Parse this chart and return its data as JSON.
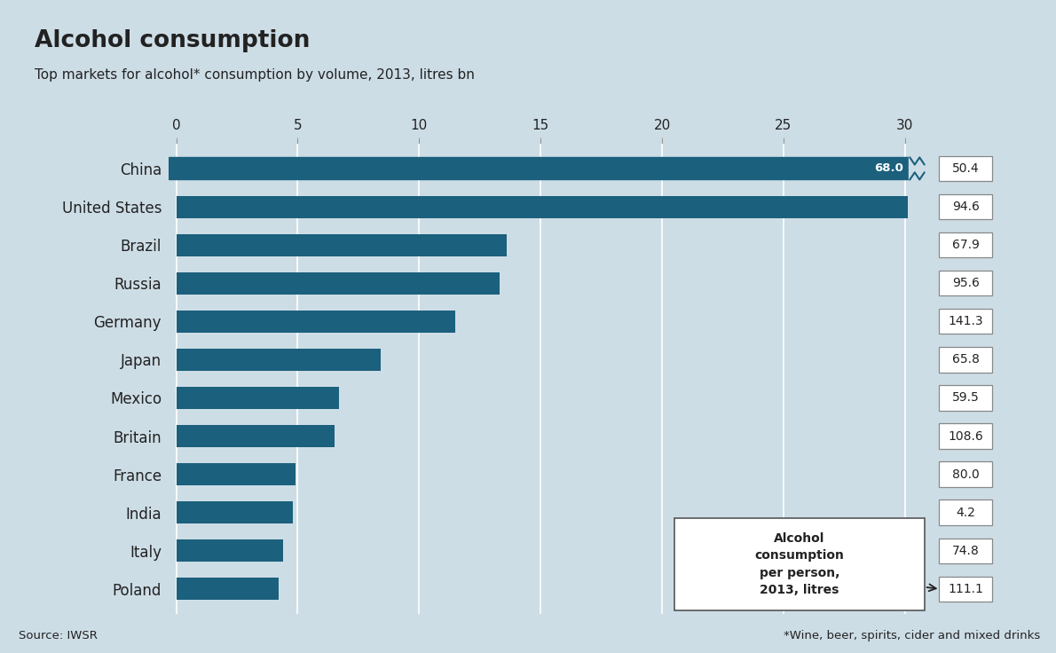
{
  "title": "Alcohol consumption",
  "subtitle": "Top markets for alcohol* consumption by volume, 2013, litres bn",
  "footnote": "*Wine, beer, spirits, cider and mixed drinks",
  "source": "Source: IWSR",
  "countries": [
    "China",
    "United States",
    "Brazil",
    "Russia",
    "Germany",
    "Japan",
    "Mexico",
    "Britain",
    "France",
    "India",
    "Italy",
    "Poland"
  ],
  "volumes": [
    68.0,
    30.3,
    13.6,
    13.3,
    11.5,
    8.4,
    6.7,
    6.5,
    4.9,
    4.8,
    4.4,
    4.2
  ],
  "per_person": [
    "50.4",
    "94.6",
    "67.9",
    "95.6",
    "141.3",
    "65.8",
    "59.5",
    "108.6",
    "80.0",
    "4.2",
    "74.8",
    "111.1"
  ],
  "bar_color": "#1b607c",
  "background_color": "#cddde6",
  "text_color": "#222222",
  "box_bg_color": "#ffffff",
  "box_edge_color": "#888888",
  "title_red_color": "#cc0000",
  "xticks": [
    0,
    5,
    10,
    15,
    20,
    25,
    30
  ],
  "annotation_box_text": "Alcohol\nconsumption\nper person,\n2013, litres",
  "china_display_value": 30.5,
  "us_display_value": 30.1
}
